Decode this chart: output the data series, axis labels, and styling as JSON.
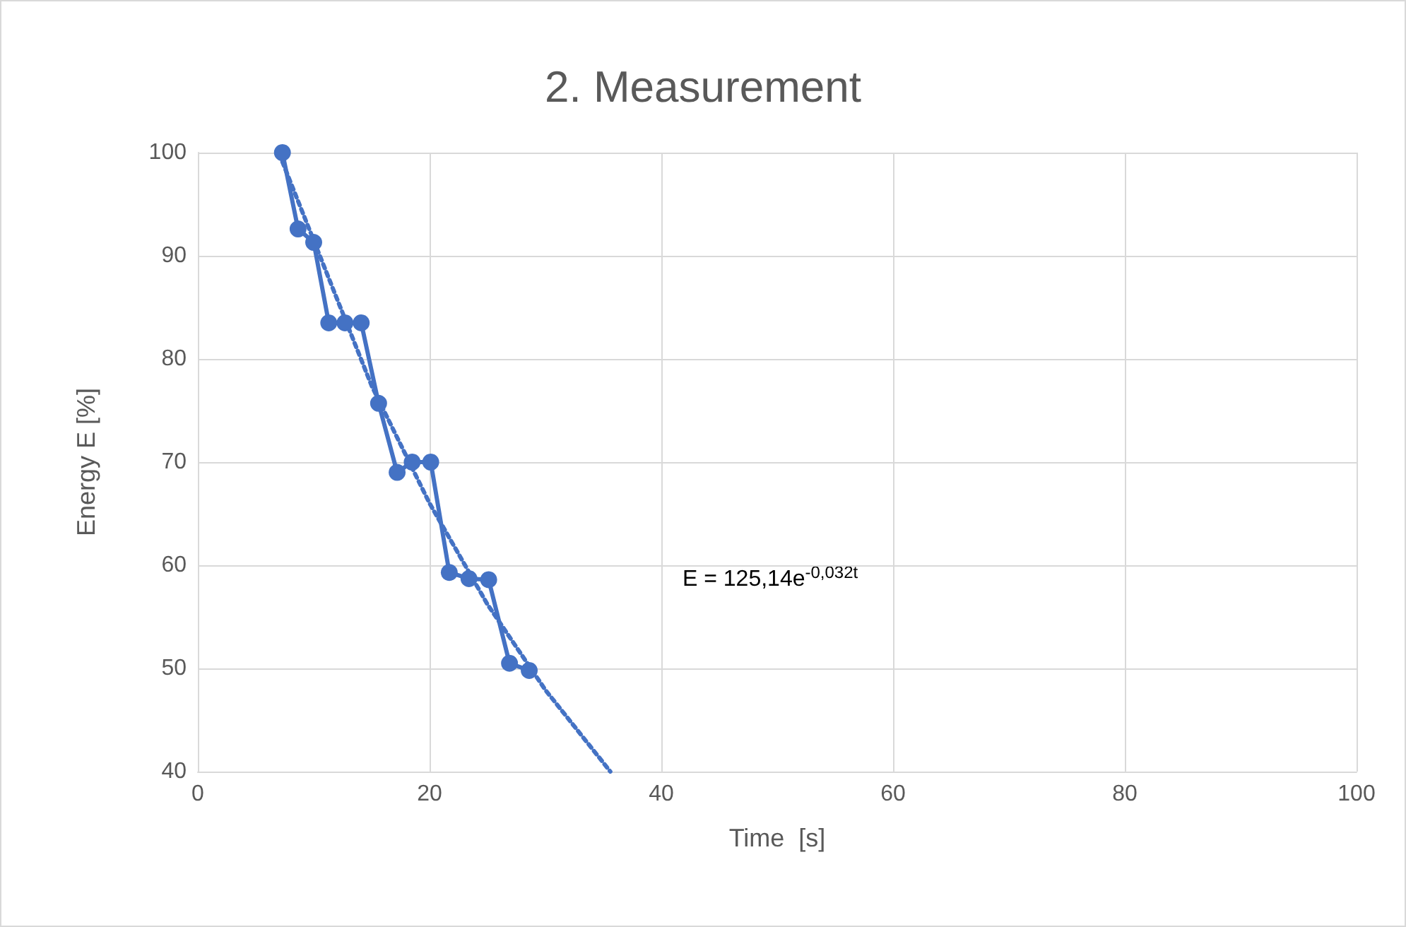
{
  "chart_data": {
    "type": "line",
    "title": "2. Measurement",
    "xlabel": "Time  [s]",
    "ylabel": "Energy E [%]",
    "series": [
      {
        "color": "#4472c4",
        "marker": "circle",
        "line_style": "solid",
        "x": [
          7.3,
          8.65,
          10.0,
          11.3,
          12.7,
          14.1,
          15.6,
          17.2,
          18.5,
          20.1,
          21.7,
          23.4,
          25.1,
          26.9,
          28.6
        ],
        "values": [
          100,
          92.6,
          91.3,
          83.5,
          83.5,
          83.5,
          75.7,
          69.0,
          70.0,
          70.0,
          59.3,
          58.7,
          58.6,
          50.5,
          49.8
        ]
      },
      {
        "color": "#4472c4",
        "marker": "none",
        "line_style": "dotted",
        "x": [
          7.3,
          15,
          20,
          25,
          30,
          35.6
        ],
        "values": [
          99.1,
          77.4,
          66.0,
          56.2,
          47.9,
          40
        ]
      }
    ],
    "annotations": [
      "E = 125,14e$^{-0,032t}$"
    ],
    "xlim": [
      0,
      100
    ],
    "xticks": [
      0,
      20,
      40,
      60,
      80,
      100
    ],
    "ylim": [
      40,
      100
    ],
    "yticks": [
      40,
      50,
      60,
      70,
      80,
      90,
      100
    ],
    "grid": true
  }
}
